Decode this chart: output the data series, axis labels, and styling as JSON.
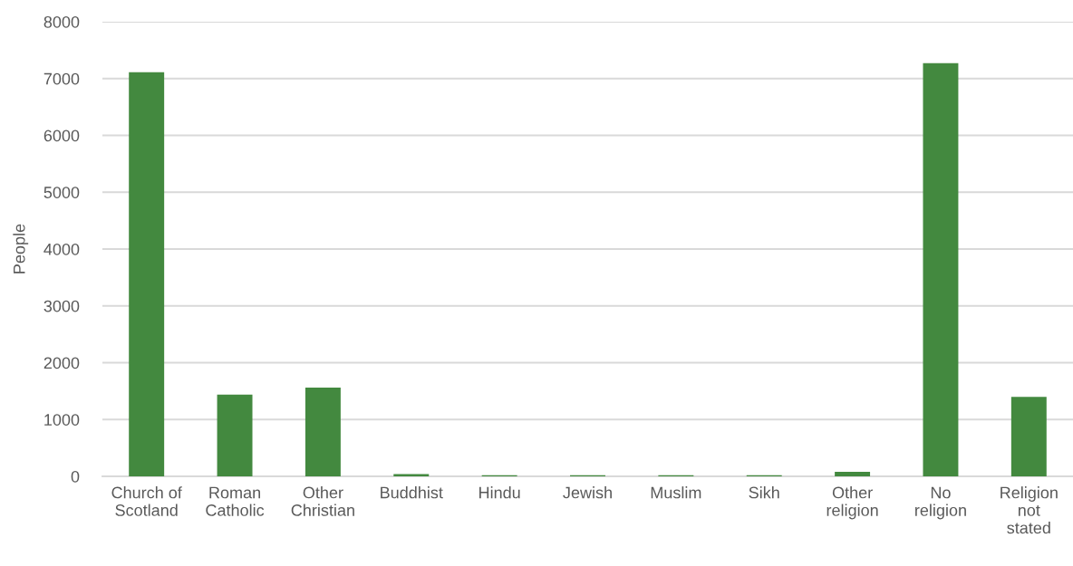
{
  "chart_data": {
    "type": "bar",
    "ylabel": "People",
    "categories": [
      "Church of\nScotland",
      "Roman\nCatholic",
      "Other\nChristian",
      "Buddhist",
      "Hindu",
      "Jewish",
      "Muslim",
      "Sikh",
      "Other\nreligion",
      "No\nreligion",
      "Religion\nnot\nstated"
    ],
    "values": [
      7110,
      1440,
      1560,
      40,
      20,
      20,
      20,
      20,
      80,
      7270,
      1400
    ],
    "color": "#43893f",
    "ylim": [
      0,
      8000
    ],
    "yticks": [
      0,
      1000,
      2000,
      3000,
      4000,
      5000,
      6000,
      7000,
      8000
    ],
    "grid": "y",
    "legend": false
  }
}
